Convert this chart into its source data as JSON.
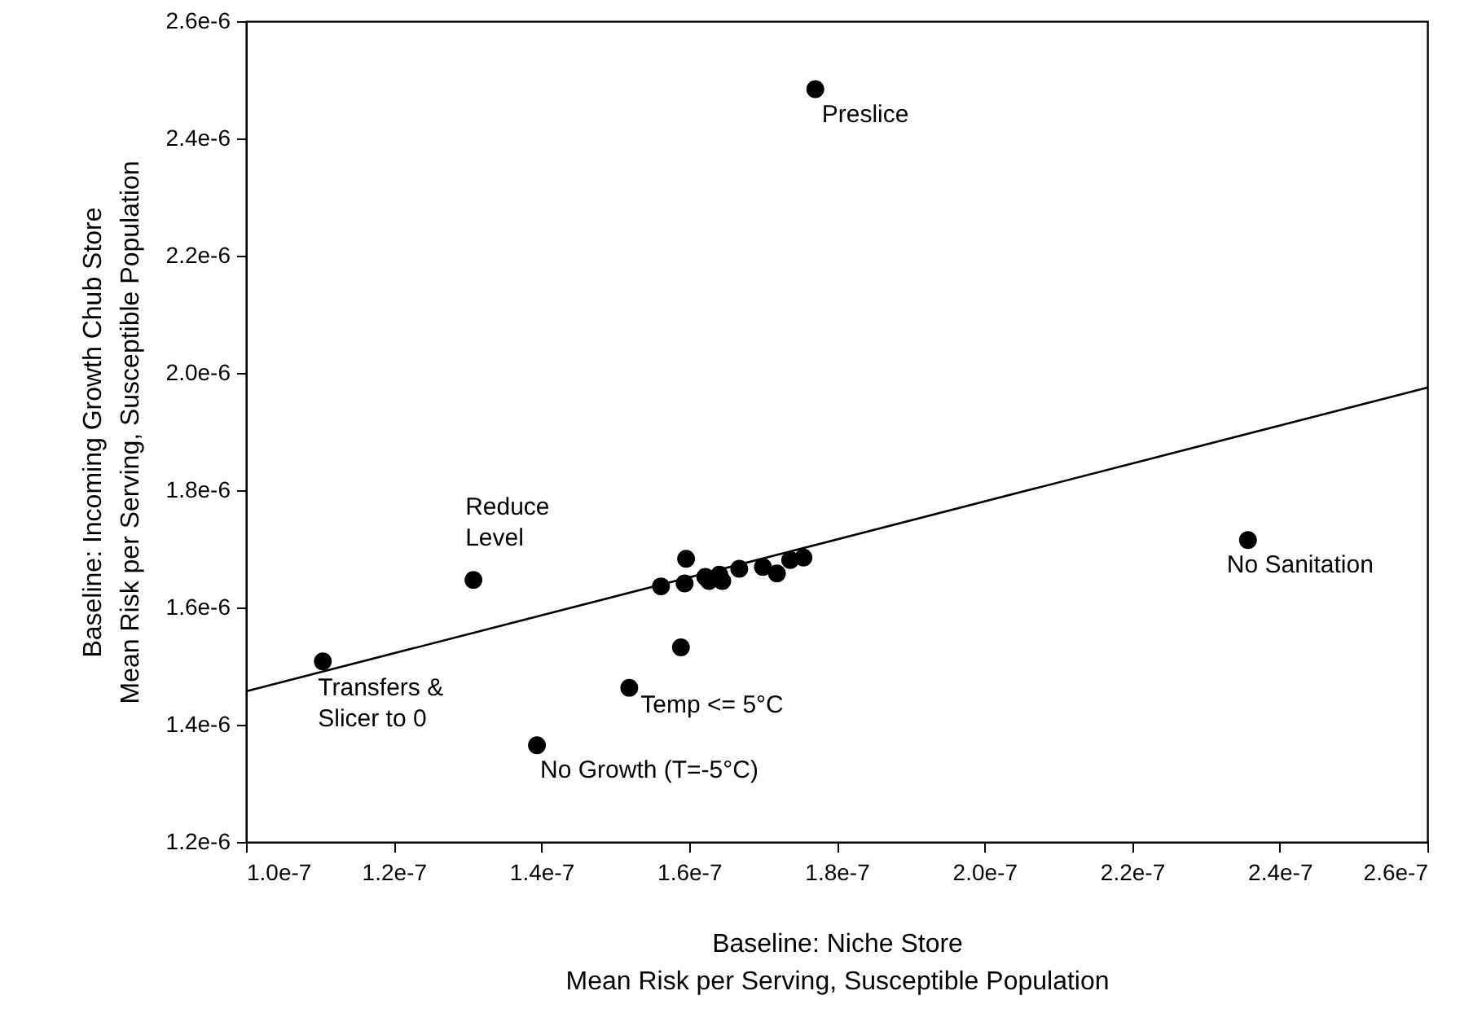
{
  "chart_data": {
    "type": "scatter",
    "xlabel": "Baseline: Niche Store\nMean Risk per Serving, Susceptible Population",
    "ylabel": "Baseline: Incoming Growth Chub Store\nMean Risk per Serving, Susceptible Population",
    "xlim": [
      1e-07,
      2.6e-07
    ],
    "ylim": [
      1.2e-06,
      2.6e-06
    ],
    "xticks": [
      {
        "value": 1e-07,
        "label": "1.0e-7"
      },
      {
        "value": 1.2e-07,
        "label": "1.2e-7"
      },
      {
        "value": 1.4e-07,
        "label": "1.4e-7"
      },
      {
        "value": 1.6e-07,
        "label": "1.6e-7"
      },
      {
        "value": 1.8e-07,
        "label": "1.8e-7"
      },
      {
        "value": 2e-07,
        "label": "2.0e-7"
      },
      {
        "value": 2.2e-07,
        "label": "2.2e-7"
      },
      {
        "value": 2.4e-07,
        "label": "2.4e-7"
      },
      {
        "value": 2.6e-07,
        "label": "2.6e-7"
      }
    ],
    "yticks": [
      {
        "value": 1.2e-06,
        "label": "1.2e-6"
      },
      {
        "value": 1.4e-06,
        "label": "1.4e-6"
      },
      {
        "value": 1.6e-06,
        "label": "1.6e-6"
      },
      {
        "value": 1.8e-06,
        "label": "1.8e-6"
      },
      {
        "value": 2e-06,
        "label": "2.0e-6"
      },
      {
        "value": 2.2e-06,
        "label": "2.2e-6"
      },
      {
        "value": 2.4e-06,
        "label": "2.4e-6"
      },
      {
        "value": 2.6e-06,
        "label": "2.6e-6"
      }
    ],
    "grid": false,
    "series": [
      {
        "marker": "circle",
        "color": "#000000",
        "x": [
          1.771e-07,
          2.357e-07,
          1.308e-07,
          1.104e-07,
          1.519e-07,
          1.394e-07,
          1.589e-07,
          1.562e-07,
          1.596e-07,
          1.594e-07,
          1.622e-07,
          1.627e-07,
          1.645e-07,
          1.641e-07,
          1.668e-07,
          1.7e-07,
          1.719e-07,
          1.737e-07,
          1.755e-07
        ],
        "values": [
          2.484e-06,
          1.715e-06,
          1.647e-06,
          1.508e-06,
          1.463e-06,
          1.365e-06,
          1.532e-06,
          1.636e-06,
          1.683e-06,
          1.641e-06,
          1.652e-06,
          1.645e-06,
          1.645e-06,
          1.656e-06,
          1.666e-06,
          1.669e-06,
          1.658e-06,
          1.681e-06,
          1.685e-06
        ]
      },
      {
        "type": "line",
        "color": "#000000",
        "line_style": "solid",
        "x": [
          1e-07,
          2.6e-07
        ],
        "values": [
          1.457e-06,
          1.975e-06
        ]
      }
    ],
    "annotations": [
      {
        "text": "Preslice",
        "x": 1.771e-07,
        "y": 2.484e-06
      },
      {
        "text": "Reduce\nLevel",
        "x": 1.308e-07,
        "y": 1.647e-06
      },
      {
        "text": "No Sanitation",
        "x": 2.357e-07,
        "y": 1.715e-06
      },
      {
        "text": "Transfers &\nSlicer to 0",
        "x": 1.104e-07,
        "y": 1.508e-06
      },
      {
        "text": "Temp <= 5°C",
        "x": 1.519e-07,
        "y": 1.463e-06
      },
      {
        "text": "No Growth (T=-5°C)",
        "x": 1.394e-07,
        "y": 1.365e-06
      }
    ]
  }
}
